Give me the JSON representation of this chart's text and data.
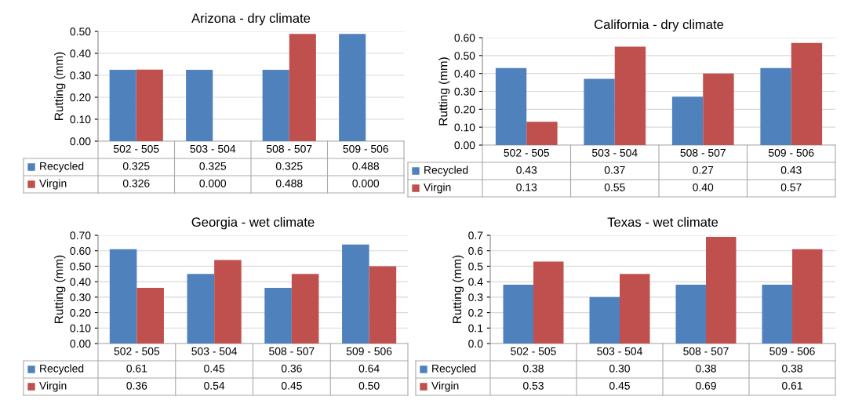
{
  "chart_data": [
    {
      "type": "bar",
      "legend": "bottom left",
      "title": "Arizona - dry climate",
      "ylabel": "Rutting (mm)",
      "categories": [
        "502 - 505",
        "503 - 504",
        "508 - 507",
        "509 - 506"
      ],
      "ylim": [
        0,
        0.5
      ],
      "yticks": [
        {
          "value": 0,
          "label": "0.00"
        },
        {
          "value": 0.1,
          "label": "0.10"
        },
        {
          "value": 0.2,
          "label": "0.20"
        },
        {
          "value": 0.3,
          "label": "0.30"
        },
        {
          "value": 0.4,
          "label": "0.40"
        },
        {
          "value": 0.5,
          "label": "0.50"
        }
      ],
      "grid": "y",
      "series": [
        {
          "name": "Recycled",
          "color": "#4f81bd",
          "values": [
            0.325,
            0.325,
            0.325,
            0.488
          ],
          "value_labels": [
            "0.325",
            "0.325",
            "0.325",
            "0.488"
          ]
        },
        {
          "name": "Virgin",
          "color": "#c0504d",
          "values": [
            0.326,
            0.0,
            0.488,
            0.0
          ],
          "value_labels": [
            "0.326",
            "0.000",
            "0.488",
            "0.000"
          ]
        }
      ]
    },
    {
      "type": "bar",
      "legend": "bottom left",
      "title": "California - dry climate",
      "ylabel": "Rutting (mm)",
      "categories": [
        "502 - 505",
        "503 - 504",
        "508 - 507",
        "509 - 506"
      ],
      "ylim": [
        0,
        0.6
      ],
      "yticks": [
        {
          "value": 0,
          "label": "0.00"
        },
        {
          "value": 0.1,
          "label": "0.10"
        },
        {
          "value": 0.2,
          "label": "0.20"
        },
        {
          "value": 0.3,
          "label": "0.30"
        },
        {
          "value": 0.4,
          "label": "0.40"
        },
        {
          "value": 0.5,
          "label": "0.50"
        },
        {
          "value": 0.6,
          "label": "0.60"
        }
      ],
      "grid": "y",
      "series": [
        {
          "name": "Recycled",
          "color": "#4f81bd",
          "values": [
            0.43,
            0.37,
            0.27,
            0.43
          ],
          "value_labels": [
            "0.43",
            "0.37",
            "0.27",
            "0.43"
          ]
        },
        {
          "name": "Virgin",
          "color": "#c0504d",
          "values": [
            0.13,
            0.55,
            0.4,
            0.57
          ],
          "value_labels": [
            "0.13",
            "0.55",
            "0.40",
            "0.57"
          ]
        }
      ]
    },
    {
      "type": "bar",
      "legend": "bottom left",
      "title": "Georgia - wet climate",
      "ylabel": "Rutting (mm)",
      "categories": [
        "502 - 505",
        "503 - 504",
        "508 - 507",
        "509 - 506"
      ],
      "ylim": [
        0,
        0.7
      ],
      "yticks": [
        {
          "value": 0,
          "label": "0.00"
        },
        {
          "value": 0.1,
          "label": "0.10"
        },
        {
          "value": 0.2,
          "label": "0.20"
        },
        {
          "value": 0.3,
          "label": "0.30"
        },
        {
          "value": 0.4,
          "label": "0.40"
        },
        {
          "value": 0.5,
          "label": "0.50"
        },
        {
          "value": 0.6,
          "label": "0.60"
        },
        {
          "value": 0.7,
          "label": "0.70"
        }
      ],
      "grid": "y",
      "series": [
        {
          "name": "Recycled",
          "color": "#4f81bd",
          "values": [
            0.61,
            0.45,
            0.36,
            0.64
          ],
          "value_labels": [
            "0.61",
            "0.45",
            "0.36",
            "0.64"
          ]
        },
        {
          "name": "Virgin",
          "color": "#c0504d",
          "values": [
            0.36,
            0.54,
            0.45,
            0.5
          ],
          "value_labels": [
            "0.36",
            "0.54",
            "0.45",
            "0.50"
          ]
        }
      ]
    },
    {
      "type": "bar",
      "legend": "bottom left",
      "title": "Texas - wet climate",
      "ylabel": "Rutting (mm)",
      "categories": [
        "502 - 505",
        "503 - 504",
        "508 - 507",
        "509 - 506"
      ],
      "ylim": [
        0,
        0.7
      ],
      "yticks": [
        {
          "value": 0,
          "label": "0.0"
        },
        0.1,
        0.2,
        0.3,
        0.4,
        0.5,
        0.6,
        0.7
      ],
      "grid": "y",
      "series": [
        {
          "name": "Recycled",
          "color": "#4f81bd",
          "values": [
            0.38,
            0.3,
            0.38,
            0.38
          ],
          "value_labels": [
            "0.38",
            "0.30",
            "0.38",
            "0.38"
          ]
        },
        {
          "name": "Virgin",
          "color": "#c0504d",
          "values": [
            0.53,
            0.45,
            0.69,
            0.61
          ],
          "value_labels": [
            "0.53",
            "0.45",
            "0.69",
            "0.61"
          ]
        }
      ]
    }
  ]
}
